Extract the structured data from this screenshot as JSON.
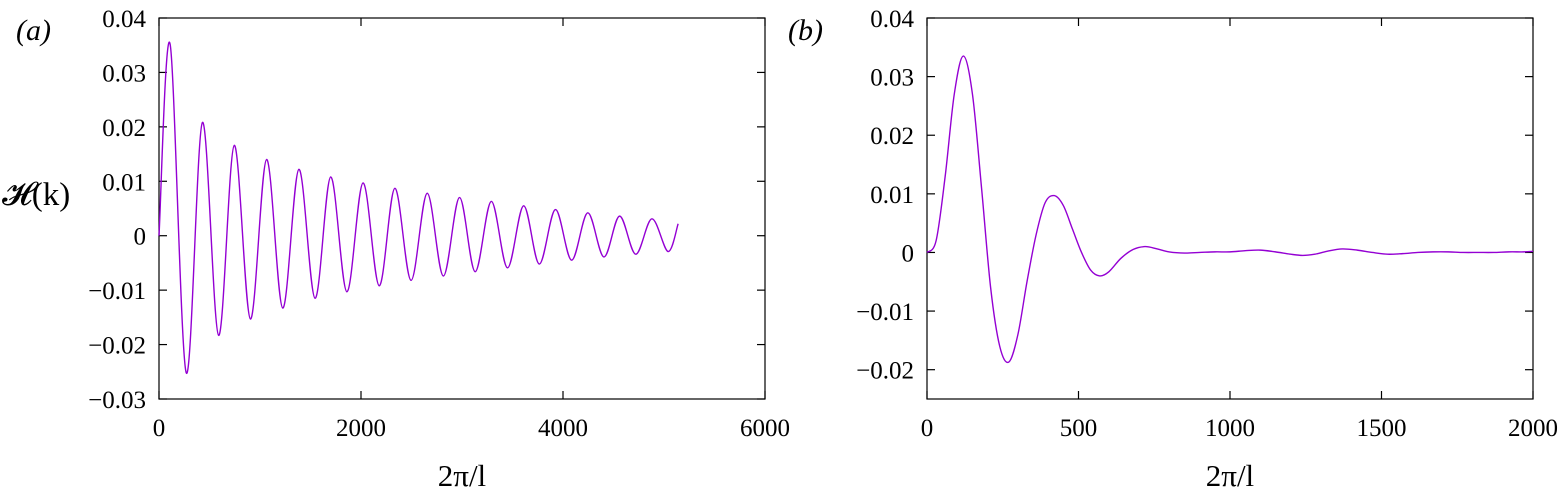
{
  "chart_data": [
    {
      "type": "line",
      "panel_label": "(a)",
      "xlabel": "2π/l",
      "ylabel": "𝓗(k)",
      "xlim": [
        0,
        6000
      ],
      "ylim": [
        -0.03,
        0.04
      ],
      "xticks": [
        0,
        2000,
        4000,
        6000
      ],
      "yticks": [
        -0.03,
        -0.02,
        -0.01,
        0,
        0.01,
        0.02,
        0.03,
        0.04
      ],
      "xtick_labels": [
        "0",
        "2000",
        "4000",
        "6000"
      ],
      "ytick_labels": [
        "−0.03",
        "−0.02",
        "−0.01",
        "0",
        "0.01",
        "0.02",
        "0.03",
        "0.04"
      ],
      "grid": false,
      "line_color": "#9400D3",
      "series": [
        {
          "x": [
            0,
            110,
            270,
            430,
            590,
            745,
            905,
            1065,
            1225,
            1385,
            1545,
            1700,
            1860,
            2020,
            2180,
            2335,
            2495,
            2655,
            2815,
            2975,
            3130,
            3290,
            3450,
            3610,
            3765,
            3925,
            4085,
            4245,
            4405,
            4560,
            4720,
            4880,
            5040,
            5140
          ],
          "y": [
            0,
            0.0352,
            -0.0252,
            0.0208,
            -0.0183,
            0.0166,
            -0.0153,
            0.014,
            -0.0133,
            0.0122,
            -0.0115,
            0.0108,
            -0.0103,
            0.0097,
            -0.0092,
            0.0087,
            -0.0082,
            0.0078,
            -0.0074,
            0.007,
            -0.0066,
            0.0063,
            -0.0059,
            0.0055,
            -0.0052,
            0.0048,
            -0.0045,
            0.0042,
            -0.0039,
            0.0036,
            -0.0034,
            0.0031,
            -0.0029,
            0.0022
          ]
        }
      ]
    },
    {
      "type": "line",
      "panel_label": "(b)",
      "xlabel": "2π/l",
      "ylabel": "",
      "xlim": [
        0,
        2000
      ],
      "ylim": [
        -0.025,
        0.04
      ],
      "xticks": [
        0,
        500,
        1000,
        1500,
        2000
      ],
      "yticks": [
        -0.02,
        -0.01,
        0,
        0.01,
        0.02,
        0.03,
        0.04
      ],
      "xtick_labels": [
        "0",
        "500",
        "1000",
        "1500",
        "2000"
      ],
      "ytick_labels": [
        "−0.02",
        "−0.01",
        "0",
        "0.01",
        "0.02",
        "0.03",
        "0.04"
      ],
      "grid": false,
      "line_color": "#9400D3",
      "series": [
        {
          "x": [
            0,
            30,
            60,
            90,
            120,
            150,
            180,
            210,
            240,
            270,
            300,
            330,
            360,
            390,
            420,
            450,
            480,
            510,
            540,
            570,
            600,
            640,
            680,
            720,
            760,
            800,
            850,
            900,
            950,
            1000,
            1050,
            1100,
            1150,
            1200,
            1240,
            1280,
            1320,
            1370,
            1420,
            1470,
            1520,
            1570,
            1620,
            1670,
            1720,
            1770,
            1820,
            1870,
            1920,
            1970,
            2000
          ],
          "y": [
            0,
            0.002,
            0.013,
            0.027,
            0.0335,
            0.027,
            0.011,
            -0.006,
            -0.016,
            -0.0187,
            -0.014,
            -0.005,
            0.003,
            0.0085,
            0.0097,
            0.008,
            0.004,
            0.0,
            -0.003,
            -0.004,
            -0.0033,
            -0.001,
            0.0005,
            0.001,
            0.0006,
            0.0001,
            -0.0001,
            0.0,
            0.0001,
            0.0001,
            0.0003,
            0.0004,
            0.0001,
            -0.0003,
            -0.0005,
            -0.0003,
            0.0002,
            0.0006,
            0.0004,
            0.0,
            -0.0003,
            -0.0002,
            0.0,
            0.0001,
            0.0001,
            0.0,
            0.0,
            0.0,
            0.0001,
            0.0001,
            0.0002
          ]
        }
      ]
    }
  ]
}
